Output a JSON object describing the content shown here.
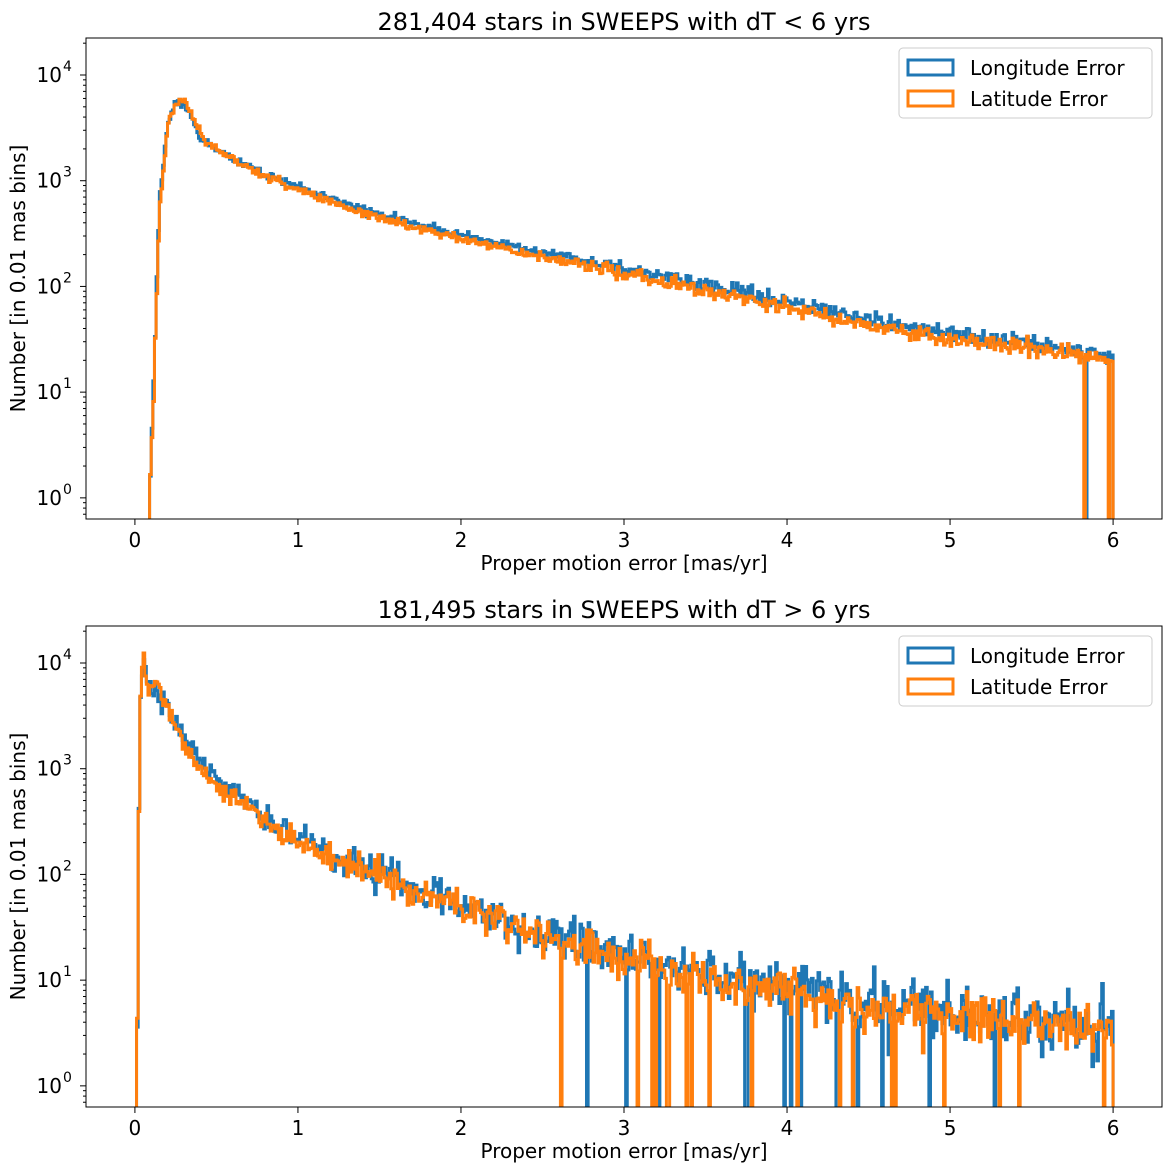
{
  "chart_data": [
    {
      "type": "step-histogram",
      "title": "281,404 stars in SWEEPS with dT < 6 yrs",
      "xlabel": "Proper motion error [mas/yr]",
      "ylabel": "Number [in 0.01 mas bins]",
      "xlim": [
        -0.3,
        6.3
      ],
      "ylim_log10": [
        -0.2,
        4.35
      ],
      "yscale": "log",
      "bin_width": 0.01,
      "x_range": [
        0.0,
        6.0
      ],
      "xticks": [
        0,
        1,
        2,
        3,
        4,
        5,
        6
      ],
      "xtick_labels": [
        "0",
        "1",
        "2",
        "3",
        "4",
        "5",
        "6"
      ],
      "yticks": [
        {
          "exp": 0,
          "label": "10",
          "sup": "0"
        },
        {
          "exp": 1,
          "label": "10",
          "sup": "1"
        },
        {
          "exp": 2,
          "label": "10",
          "sup": "2"
        },
        {
          "exp": 3,
          "label": "10",
          "sup": "3"
        },
        {
          "exp": 4,
          "label": "10",
          "sup": "4"
        }
      ],
      "legend_position": "top-right",
      "series": [
        {
          "name": "Longitude Error",
          "color": "#1f77b4",
          "seed": 11,
          "noise": 0.07,
          "key_points": [
            [
              0.09,
              0.0
            ],
            [
              0.1,
              0.5
            ],
            [
              0.12,
              1.3
            ],
            [
              0.15,
              2.8
            ],
            [
              0.2,
              3.55
            ],
            [
              0.25,
              3.73
            ],
            [
              0.28,
              3.76
            ],
            [
              0.32,
              3.68
            ],
            [
              0.4,
              3.42
            ],
            [
              0.5,
              3.28
            ],
            [
              0.7,
              3.13
            ],
            [
              1.0,
              2.93
            ],
            [
              1.5,
              2.68
            ],
            [
              2.0,
              2.49
            ],
            [
              2.5,
              2.32
            ],
            [
              3.0,
              2.17
            ],
            [
              3.5,
              2.01
            ],
            [
              4.0,
              1.85
            ],
            [
              4.5,
              1.69
            ],
            [
              5.0,
              1.55
            ],
            [
              5.5,
              1.47
            ],
            [
              5.99,
              1.33
            ]
          ]
        },
        {
          "name": "Latitude Error",
          "color": "#ff7f0e",
          "seed": 23,
          "noise": 0.07,
          "key_points": [
            [
              0.09,
              0.0
            ],
            [
              0.1,
              0.4
            ],
            [
              0.12,
              1.2
            ],
            [
              0.15,
              2.7
            ],
            [
              0.2,
              3.52
            ],
            [
              0.25,
              3.72
            ],
            [
              0.28,
              3.76
            ],
            [
              0.33,
              3.7
            ],
            [
              0.4,
              3.45
            ],
            [
              0.5,
              3.3
            ],
            [
              0.7,
              3.12
            ],
            [
              1.0,
              2.91
            ],
            [
              1.5,
              2.64
            ],
            [
              2.0,
              2.45
            ],
            [
              2.5,
              2.28
            ],
            [
              3.0,
              2.12
            ],
            [
              3.5,
              1.96
            ],
            [
              4.0,
              1.8
            ],
            [
              4.5,
              1.64
            ],
            [
              5.0,
              1.5
            ],
            [
              5.5,
              1.42
            ],
            [
              5.99,
              1.28
            ]
          ]
        }
      ]
    },
    {
      "type": "step-histogram",
      "title": "181,495 stars in SWEEPS with dT > 6 yrs",
      "xlabel": "Proper motion error [mas/yr]",
      "ylabel": "Number [in 0.01 mas bins]",
      "xlim": [
        -0.3,
        6.3
      ],
      "ylim_log10": [
        -0.2,
        4.35
      ],
      "yscale": "log",
      "bin_width": 0.01,
      "x_range": [
        0.0,
        6.0
      ],
      "xticks": [
        0,
        1,
        2,
        3,
        4,
        5,
        6
      ],
      "xtick_labels": [
        "0",
        "1",
        "2",
        "3",
        "4",
        "5",
        "6"
      ],
      "yticks": [
        {
          "exp": 0,
          "label": "10",
          "sup": "0"
        },
        {
          "exp": 1,
          "label": "10",
          "sup": "1"
        },
        {
          "exp": 2,
          "label": "10",
          "sup": "2"
        },
        {
          "exp": 3,
          "label": "10",
          "sup": "3"
        },
        {
          "exp": 4,
          "label": "10",
          "sup": "4"
        }
      ],
      "legend_position": "top-right",
      "series": [
        {
          "name": "Longitude Error",
          "color": "#1f77b4",
          "seed": 37,
          "noise": 0.18,
          "key_points": [
            [
              0.01,
              0.0
            ],
            [
              0.02,
              1.7
            ],
            [
              0.03,
              3.55
            ],
            [
              0.05,
              4.05
            ],
            [
              0.08,
              3.83
            ],
            [
              0.15,
              3.68
            ],
            [
              0.25,
              3.43
            ],
            [
              0.35,
              3.18
            ],
            [
              0.5,
              2.9
            ],
            [
              0.75,
              2.6
            ],
            [
              1.0,
              2.35
            ],
            [
              1.25,
              2.15
            ],
            [
              1.5,
              2.0
            ],
            [
              2.0,
              1.73
            ],
            [
              2.5,
              1.45
            ],
            [
              3.0,
              1.25
            ],
            [
              3.5,
              1.08
            ],
            [
              4.0,
              0.95
            ],
            [
              4.5,
              0.8
            ],
            [
              5.0,
              0.72
            ],
            [
              5.5,
              0.62
            ],
            [
              5.99,
              0.55
            ]
          ]
        },
        {
          "name": "Latitude Error",
          "color": "#ff7f0e",
          "seed": 53,
          "noise": 0.16,
          "key_points": [
            [
              0.01,
              0.0
            ],
            [
              0.02,
              1.6
            ],
            [
              0.03,
              3.65
            ],
            [
              0.05,
              4.12
            ],
            [
              0.08,
              3.8
            ],
            [
              0.15,
              3.78
            ],
            [
              0.25,
              3.38
            ],
            [
              0.35,
              3.08
            ],
            [
              0.5,
              2.84
            ],
            [
              0.75,
              2.56
            ],
            [
              1.0,
              2.32
            ],
            [
              1.25,
              2.12
            ],
            [
              1.5,
              1.98
            ],
            [
              2.0,
              1.7
            ],
            [
              2.5,
              1.4
            ],
            [
              3.0,
              1.2
            ],
            [
              3.5,
              1.03
            ],
            [
              4.0,
              0.9
            ],
            [
              4.5,
              0.76
            ],
            [
              5.0,
              0.68
            ],
            [
              5.5,
              0.6
            ],
            [
              5.99,
              0.52
            ]
          ]
        }
      ]
    }
  ]
}
